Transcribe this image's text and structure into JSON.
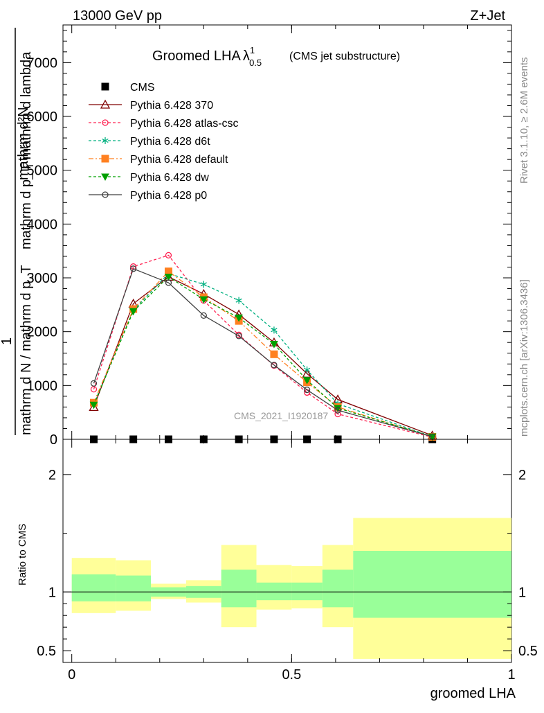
{
  "header": {
    "energy_label": "13000 GeV pp",
    "process_label": "Z+Jet"
  },
  "side_text": {
    "rivet": "Rivet 3.1.10, ≥ 2.6M events",
    "mcplots": "mcplots.cern.ch [arXiv:1306.3436]"
  },
  "chart_data": [
    {
      "type": "line",
      "title": "Groomed LHAλ¹₀.₅",
      "title_main": "Groomed LHA",
      "title_lambda": "λ",
      "title_sup": "1",
      "title_sub": "0.5",
      "subtitle": "(CMS jet substructure)",
      "analysis_label": "CMS_2021_I1920187",
      "ylabel_top": "mathrm d²N",
      "ylabel_mid": "mathrm d p_T mathrm d lambda",
      "ylabel_frac_num": "1",
      "ylabel_frac_den": "mathrm d N / mathrm d p_T",
      "ylim": [
        0,
        7700
      ],
      "xlim": [
        -0.02,
        1.0
      ],
      "yticks": [
        {
          "v": 0,
          "label": "0"
        },
        {
          "v": 1000,
          "label": "1000"
        },
        {
          "v": 2000,
          "label": "2000"
        },
        {
          "v": 3000,
          "label": "3000"
        },
        {
          "v": 4000,
          "label": "4000"
        },
        {
          "v": 5000,
          "label": "5000"
        },
        {
          "v": 6000,
          "label": "6000"
        },
        {
          "v": 7000,
          "label": "7000"
        }
      ],
      "x": [
        0.05,
        0.14,
        0.22,
        0.3,
        0.38,
        0.46,
        0.535,
        0.605,
        0.82
      ],
      "cms": [
        0,
        0,
        0,
        0,
        0,
        0,
        0,
        0,
        0
      ],
      "series": [
        {
          "name": "CMS",
          "color": "#000000",
          "marker": "square",
          "dash": "none",
          "values": [
            0,
            0,
            0,
            0,
            0,
            0,
            0,
            0,
            0
          ]
        },
        {
          "name": "Pythia 6.428 370",
          "color": "#800000",
          "marker": "triangle-open",
          "dash": "none",
          "values": [
            600,
            2520,
            3020,
            2700,
            2320,
            1800,
            1220,
            740,
            70
          ]
        },
        {
          "name": "Pythia 6.428 atlas-csc",
          "color": "#ff2050",
          "marker": "circle-open",
          "dash": "4,3",
          "values": [
            930,
            3210,
            3420,
            2580,
            1940,
            1370,
            870,
            470,
            40
          ]
        },
        {
          "name": "Pythia 6.428 d6t",
          "color": "#00b080",
          "marker": "asterisk",
          "dash": "4,3",
          "values": [
            650,
            2400,
            3080,
            2880,
            2580,
            2030,
            1290,
            660,
            50
          ]
        },
        {
          "name": "Pythia 6.428 default",
          "color": "#ff8020",
          "marker": "square-filled",
          "dash": "7,3,2,3",
          "values": [
            680,
            2420,
            3120,
            2640,
            2200,
            1580,
            1060,
            600,
            45
          ]
        },
        {
          "name": "Pythia 6.428 dw",
          "color": "#00a000",
          "marker": "triangle-down",
          "dash": "4,3",
          "values": [
            640,
            2380,
            3020,
            2600,
            2260,
            1770,
            1100,
            580,
            50
          ]
        },
        {
          "name": "Pythia 6.428 p0",
          "color": "#404040",
          "marker": "circle-open",
          "dash": "none",
          "values": [
            1040,
            3170,
            2910,
            2300,
            1920,
            1380,
            920,
            540,
            50
          ]
        }
      ]
    },
    {
      "type": "area",
      "ylabel": "Ratio to CMS",
      "xlabel": "groomed LHA",
      "ylim": [
        0.4,
        2.3
      ],
      "xlim": [
        -0.02,
        1.0
      ],
      "xticks": [
        {
          "v": 0,
          "label": "0"
        },
        {
          "v": 0.5,
          "label": "0.5"
        },
        {
          "v": 1,
          "label": "1"
        }
      ],
      "yticks": [
        {
          "v": 0.5,
          "label": "0.5"
        },
        {
          "v": 1,
          "label": "1"
        },
        {
          "v": 2,
          "label": "2"
        }
      ],
      "bins": [
        {
          "lo": 0.0,
          "hi": 0.1,
          "inner": [
            0.92,
            1.15
          ],
          "outer": [
            0.82,
            1.29
          ]
        },
        {
          "lo": 0.1,
          "hi": 0.18,
          "inner": [
            0.92,
            1.14
          ],
          "outer": [
            0.84,
            1.27
          ]
        },
        {
          "lo": 0.18,
          "hi": 0.26,
          "inner": [
            0.96,
            1.04
          ],
          "outer": [
            0.94,
            1.07
          ]
        },
        {
          "lo": 0.26,
          "hi": 0.34,
          "inner": [
            0.95,
            1.05
          ],
          "outer": [
            0.91,
            1.1
          ]
        },
        {
          "lo": 0.34,
          "hi": 0.42,
          "inner": [
            0.87,
            1.19
          ],
          "outer": [
            0.7,
            1.4
          ]
        },
        {
          "lo": 0.42,
          "hi": 0.5,
          "inner": [
            0.93,
            1.08
          ],
          "outer": [
            0.85,
            1.23
          ]
        },
        {
          "lo": 0.5,
          "hi": 0.57,
          "inner": [
            0.93,
            1.08
          ],
          "outer": [
            0.86,
            1.22
          ]
        },
        {
          "lo": 0.57,
          "hi": 0.64,
          "inner": [
            0.87,
            1.19
          ],
          "outer": [
            0.7,
            1.4
          ]
        },
        {
          "lo": 0.64,
          "hi": 1.0,
          "inner": [
            0.78,
            1.35
          ],
          "outer": [
            0.43,
            1.63
          ]
        }
      ],
      "reference": 1.0
    }
  ]
}
